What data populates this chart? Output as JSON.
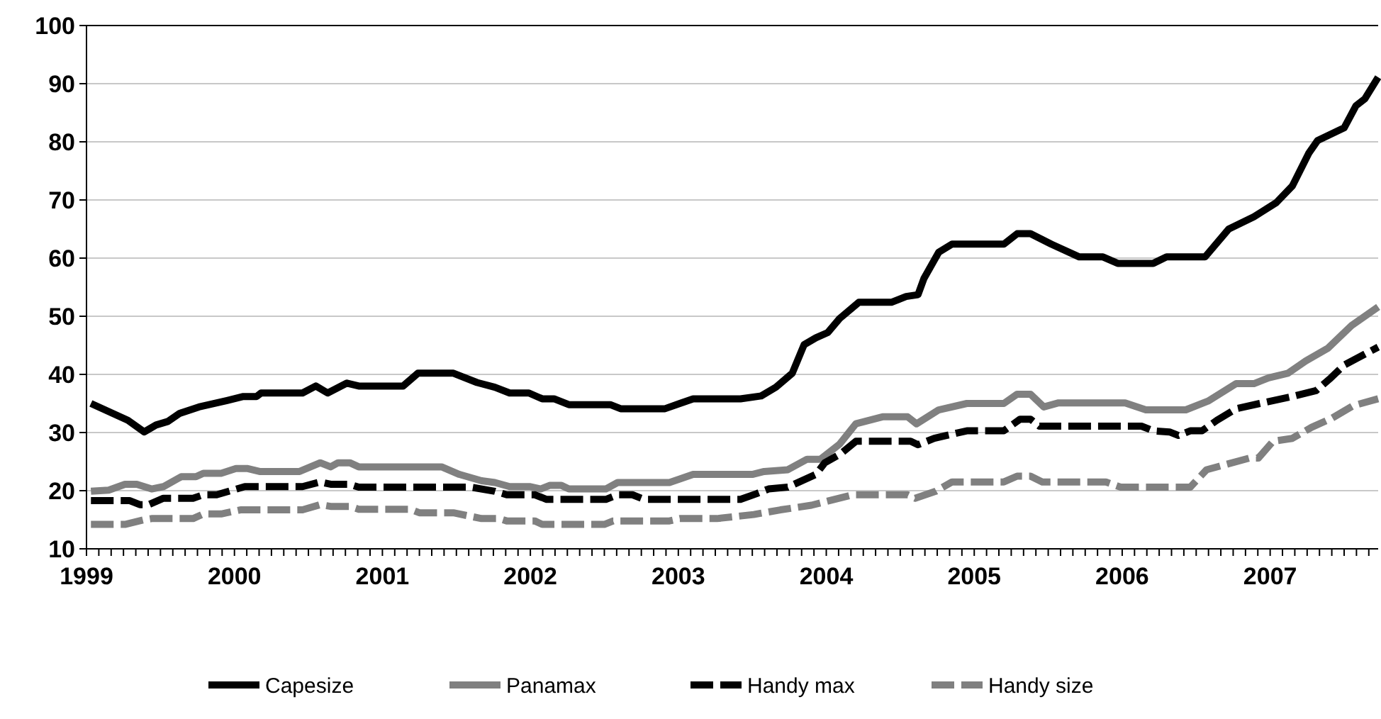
{
  "chart_data": {
    "type": "line",
    "xlim": [
      1999,
      2007.73
    ],
    "xticks": [
      1999,
      2000,
      2001,
      2002,
      2003,
      2004,
      2005,
      2006,
      2007
    ],
    "ylim": [
      10,
      100
    ],
    "yticks": [
      10,
      20,
      30,
      40,
      50,
      60,
      70,
      80,
      90,
      100
    ],
    "grid": "y",
    "legend": "bottom",
    "series": [
      {
        "name": "Capesize",
        "color": "#000000",
        "line_style": "solid",
        "x": [
          1999.03,
          1999.28,
          1999.39,
          1999.47,
          1999.55,
          1999.63,
          1999.76,
          1999.95,
          2000.06,
          2000.15,
          2000.18,
          2000.46,
          2000.55,
          2000.63,
          2000.76,
          2000.84,
          2001.14,
          2001.24,
          2001.48,
          2001.64,
          2001.76,
          2001.86,
          2001.99,
          2002.08,
          2002.16,
          2002.26,
          2002.54,
          2002.61,
          2002.91,
          2003.01,
          2003.1,
          2003.42,
          2003.56,
          2003.66,
          2003.77,
          2003.85,
          2003.93,
          2004.01,
          2004.09,
          2004.22,
          2004.44,
          2004.54,
          2004.62,
          2004.66,
          2004.76,
          2004.85,
          2005.2,
          2005.29,
          2005.38,
          2005.52,
          2005.71,
          2005.87,
          2005.97,
          2006.21,
          2006.3,
          2006.56,
          2006.72,
          2006.89,
          2007.04,
          2007.15,
          2007.26,
          2007.32,
          2007.5,
          2007.58,
          2007.64,
          2007.73
        ],
        "values": [
          35,
          32.1,
          30.1,
          31.3,
          31.9,
          33.3,
          34.4,
          35.5,
          36.2,
          36.2,
          36.8,
          36.8,
          38,
          36.8,
          38.5,
          38,
          38,
          40.2,
          40.2,
          38.6,
          37.8,
          36.8,
          36.8,
          35.8,
          35.8,
          34.8,
          34.8,
          34.1,
          34.1,
          35,
          35.8,
          35.8,
          36.3,
          37.8,
          40.2,
          45.1,
          46.3,
          47.2,
          49.6,
          52.4,
          52.4,
          53.4,
          53.7,
          56.5,
          61,
          62.4,
          62.4,
          64.2,
          64.2,
          62.4,
          60.2,
          60.2,
          59.1,
          59.1,
          60.2,
          60.2,
          65,
          67.1,
          69.5,
          72.4,
          78,
          80.2,
          82.4,
          86.2,
          87.4,
          91.1
        ]
      },
      {
        "name": "Panamax",
        "color": "#808080",
        "line_style": "solid",
        "x": [
          1999.03,
          1999.15,
          1999.26,
          1999.34,
          1999.44,
          1999.52,
          1999.64,
          1999.74,
          1999.79,
          1999.91,
          2000.01,
          2000.09,
          2000.17,
          2000.44,
          2000.58,
          2000.65,
          2000.7,
          2000.78,
          2000.84,
          2001.4,
          2001.52,
          2001.67,
          2001.76,
          2001.86,
          2002,
          2002.07,
          2002.13,
          2002.21,
          2002.26,
          2002.51,
          2002.59,
          2002.94,
          2003.01,
          2003.1,
          2003.5,
          2003.58,
          2003.74,
          2003.87,
          2003.96,
          2004.09,
          2004.2,
          2004.26,
          2004.38,
          2004.55,
          2004.61,
          2004.76,
          2004.95,
          2005.2,
          2005.29,
          2005.38,
          2005.47,
          2005.57,
          2006.02,
          2006.16,
          2006.43,
          2006.58,
          2006.77,
          2006.89,
          2006.99,
          2007.12,
          2007.24,
          2007.39,
          2007.55,
          2007.73
        ],
        "values": [
          19.9,
          20.1,
          21.1,
          21.1,
          20.3,
          20.7,
          22.4,
          22.4,
          23,
          23,
          23.8,
          23.8,
          23.3,
          23.3,
          24.8,
          24.1,
          24.8,
          24.8,
          24.1,
          24.1,
          22.8,
          21.7,
          21.4,
          20.7,
          20.7,
          20.3,
          20.9,
          20.9,
          20.3,
          20.3,
          21.4,
          21.4,
          22,
          22.8,
          22.8,
          23.3,
          23.6,
          25.4,
          25.4,
          28,
          31.5,
          31.9,
          32.7,
          32.7,
          31.5,
          33.9,
          35,
          35,
          36.6,
          36.6,
          34.4,
          35.1,
          35.1,
          33.9,
          33.9,
          35.4,
          38.4,
          38.4,
          39.4,
          40.2,
          42.3,
          44.5,
          48.4,
          51.6
        ]
      },
      {
        "name": "Handy max",
        "color": "#000000",
        "line_style": "dashed",
        "x": [
          1999.03,
          1999.29,
          1999.36,
          1999.42,
          1999.52,
          1999.72,
          1999.79,
          1999.88,
          2000.07,
          2000.46,
          2000.58,
          2000.65,
          2000.78,
          2000.84,
          2001.6,
          2001.76,
          2001.84,
          2002.03,
          2002.11,
          2002.51,
          2002.59,
          2002.69,
          2002.77,
          2003.1,
          2003.42,
          2003.53,
          2003.61,
          2003.74,
          2003.93,
          2003.99,
          2004.1,
          2004.2,
          2004.57,
          2004.62,
          2004.73,
          2004.95,
          2005.2,
          2005.31,
          2005.38,
          2005.44,
          2006.13,
          2006.21,
          2006.32,
          2006.38,
          2006.46,
          2006.54,
          2006.64,
          2006.77,
          2006.93,
          2007.15,
          2007.31,
          2007.41,
          2007.5,
          2007.73
        ],
        "values": [
          18.3,
          18.3,
          17.6,
          17.6,
          18.7,
          18.7,
          19.3,
          19.3,
          20.7,
          20.7,
          21.5,
          21.1,
          21.1,
          20.6,
          20.6,
          19.9,
          19.3,
          19.3,
          18.5,
          18.5,
          19.3,
          19.3,
          18.5,
          18.5,
          18.5,
          19.5,
          20.3,
          20.6,
          22.8,
          24.8,
          26.4,
          28.5,
          28.5,
          27.9,
          29,
          30.3,
          30.3,
          32.3,
          32.3,
          31.1,
          31.1,
          30.3,
          30.1,
          29.5,
          30.3,
          30.3,
          32.1,
          34.1,
          35,
          36.2,
          37.2,
          39.4,
          41.6,
          44.7
        ]
      },
      {
        "name": "Handy size",
        "color": "#808080",
        "line_style": "dashed",
        "x": [
          1999.03,
          1999.26,
          1999.39,
          1999.44,
          1999.72,
          1999.79,
          1999.91,
          2000.04,
          2000.46,
          2000.58,
          2000.65,
          2000.78,
          2000.84,
          2001.19,
          2001.25,
          2001.48,
          2001.67,
          2001.79,
          2001.84,
          2002.03,
          2002.08,
          2002.5,
          2002.56,
          2002.94,
          2003.01,
          2003.26,
          2003.51,
          2003.69,
          2003.9,
          2004.18,
          2004.55,
          2004.6,
          2004.74,
          2004.85,
          2005.2,
          2005.29,
          2005.38,
          2005.46,
          2005.89,
          2005.99,
          2006.46,
          2006.57,
          2006.86,
          2006.92,
          2007.02,
          2007.15,
          2007.28,
          2007.42,
          2007.56,
          2007.73
        ],
        "values": [
          14.2,
          14.2,
          15,
          15.2,
          15.2,
          16,
          16,
          16.7,
          16.7,
          17.6,
          17.3,
          17.3,
          16.8,
          16.8,
          16.2,
          16.2,
          15.2,
          15.2,
          14.8,
          14.8,
          14.2,
          14.2,
          14.8,
          14.8,
          15.2,
          15.2,
          15.9,
          16.7,
          17.5,
          19.3,
          19.3,
          18.7,
          19.9,
          21.5,
          21.5,
          22.5,
          22.5,
          21.5,
          21.5,
          20.6,
          20.6,
          23.6,
          25.6,
          25.6,
          28.5,
          29,
          30.9,
          32.5,
          34.6,
          35.8
        ]
      }
    ]
  }
}
